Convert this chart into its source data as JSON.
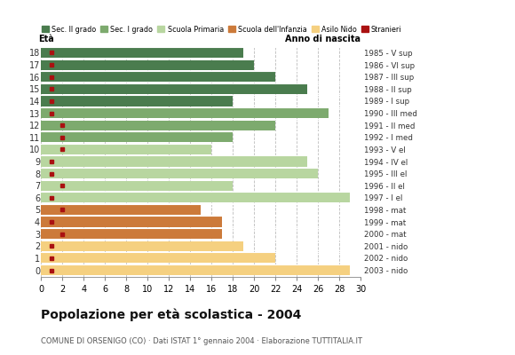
{
  "ages": [
    18,
    17,
    16,
    15,
    14,
    13,
    12,
    11,
    10,
    9,
    8,
    7,
    6,
    5,
    4,
    3,
    2,
    1,
    0
  ],
  "years": [
    "1985 - V sup",
    "1986 - VI sup",
    "1987 - III sup",
    "1988 - II sup",
    "1989 - I sup",
    "1990 - III med",
    "1991 - II med",
    "1992 - I med",
    "1993 - V el",
    "1994 - IV el",
    "1995 - III el",
    "1996 - II el",
    "1997 - I el",
    "1998 - mat",
    "1999 - mat",
    "2000 - mat",
    "2001 - nido",
    "2002 - nido",
    "2003 - nido"
  ],
  "values": [
    19,
    20,
    22,
    25,
    18,
    27,
    22,
    18,
    16,
    25,
    26,
    18,
    29,
    15,
    17,
    17,
    19,
    22,
    29
  ],
  "stranieri": [
    1,
    1,
    1,
    1,
    1,
    1,
    2,
    2,
    2,
    1,
    1,
    2,
    1,
    2,
    1,
    2,
    1,
    1,
    1
  ],
  "categories": {
    "sec2": [
      18,
      17,
      16,
      15,
      14
    ],
    "sec1": [
      13,
      12,
      11
    ],
    "primaria": [
      10,
      9,
      8,
      7,
      6
    ],
    "infanzia": [
      5,
      4,
      3
    ],
    "nido": [
      2,
      1,
      0
    ]
  },
  "colors": {
    "sec2": "#4a7c4e",
    "sec1": "#7daa6e",
    "primaria": "#b8d6a0",
    "infanzia": "#cc7a3a",
    "nido": "#f5d080",
    "stranieri": "#aa1111"
  },
  "title": "Popolazione per età scolastica - 2004",
  "subtitle": "COMUNE DI ORSENIGO (CO) · Dati ISTAT 1° gennaio 2004 · Elaborazione TUTTITALIA.IT",
  "xlabel_left": "Età",
  "xlabel_right": "Anno di nascita",
  "xlim": [
    0,
    30
  ],
  "xticks": [
    0,
    2,
    4,
    6,
    8,
    10,
    12,
    14,
    16,
    18,
    20,
    22,
    24,
    26,
    28,
    30
  ],
  "legend_labels": [
    "Sec. II grado",
    "Sec. I grado",
    "Scuola Primaria",
    "Scuola dell'Infanzia",
    "Asilo Nido",
    "Stranieri"
  ],
  "legend_colors_order": [
    "sec2",
    "sec1",
    "primaria",
    "infanzia",
    "nido",
    "stranieri"
  ],
  "bar_height": 0.82,
  "background_color": "#ffffff"
}
